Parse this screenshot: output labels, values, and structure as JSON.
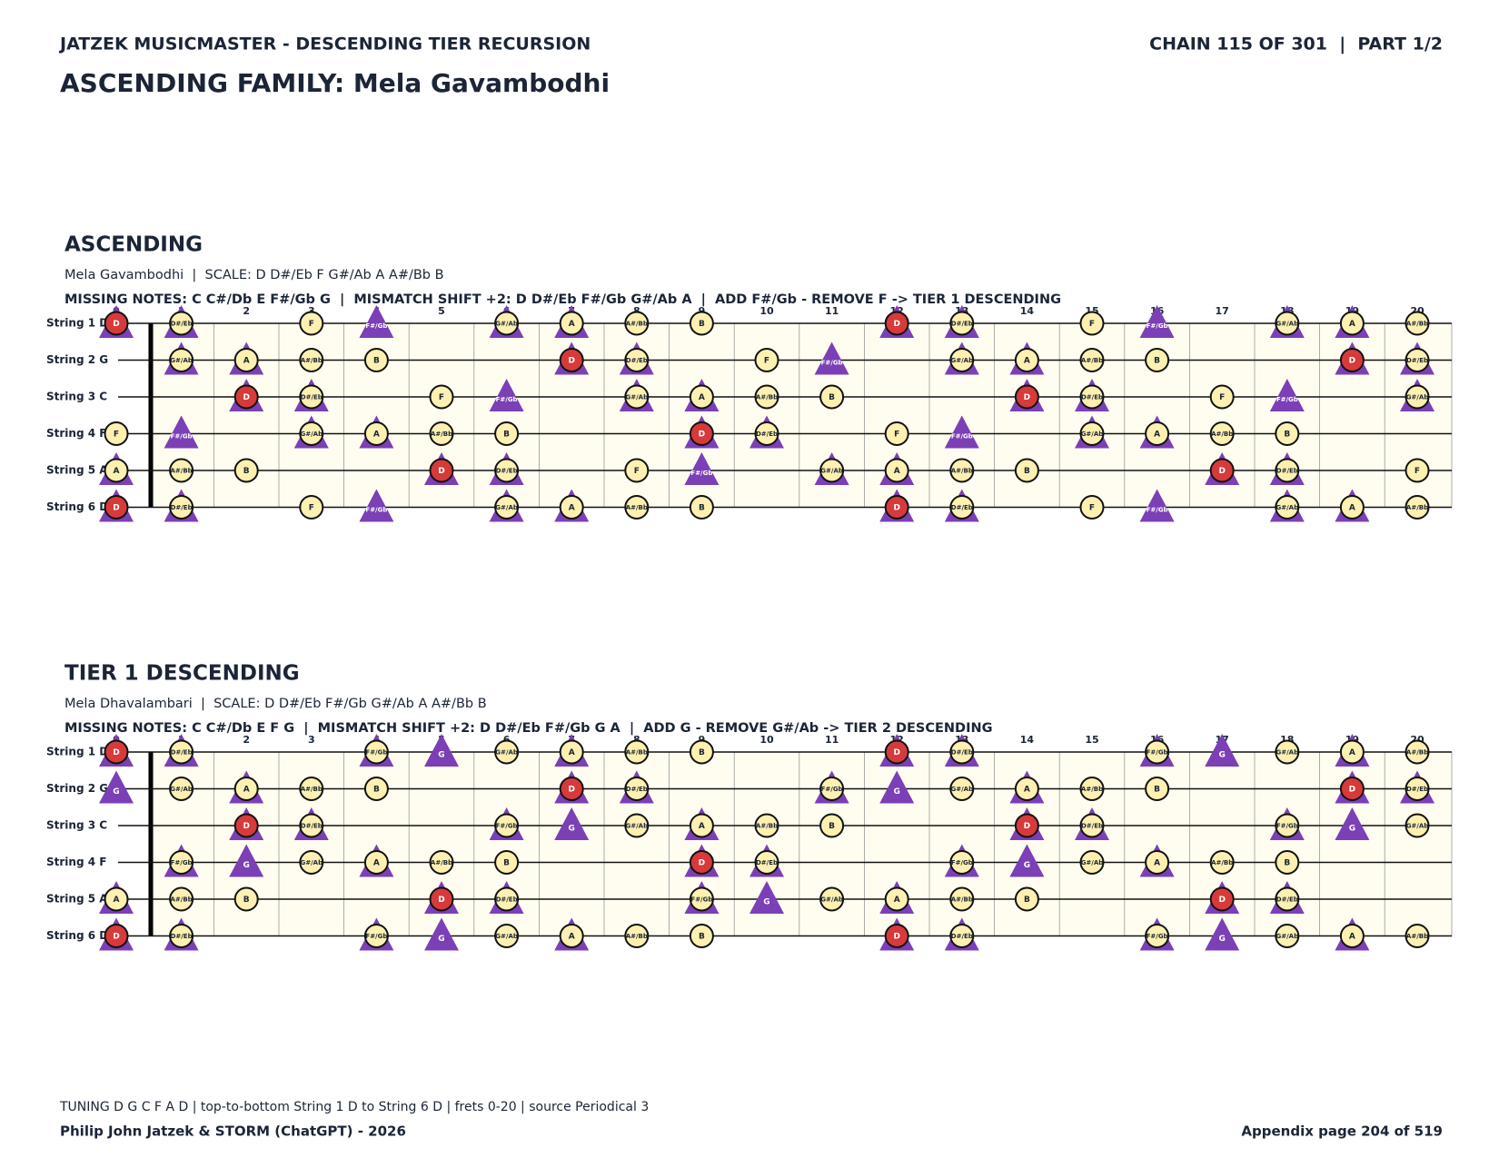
{
  "header": {
    "left": "JATZEK MUSICMASTER - DESCENDING TIER RECURSION",
    "right": "CHAIN 115 OF 301  |  PART 1/2",
    "title": "ASCENDING FAMILY: Mela Gavambodhi"
  },
  "sections": [
    {
      "title": "ASCENDING",
      "subtitle": "Mela Gavambodhi  |  SCALE: D D#/Eb F G#/Ab A A#/Bb B",
      "missing": "MISSING NOTES: C C#/Db E F#/Gb G  |  MISMATCH SHIFT +2: D D#/Eb F#/Gb G#/Ab A  |  ADD F#/Gb - REMOVE F -> TIER 1 DESCENDING",
      "frets": [
        0,
        1,
        2,
        3,
        4,
        5,
        6,
        7,
        8,
        9,
        10,
        11,
        12,
        13,
        14,
        15,
        16,
        17,
        18,
        19,
        20
      ],
      "strings": [
        {
          "label": "String 1 D",
          "cells": [
            [
              "D",
              "root"
            ],
            [
              "D#/Eb",
              "both"
            ],
            null,
            [
              "F",
              "scale"
            ],
            [
              "F#/Gb",
              "shift"
            ],
            null,
            [
              "G#/Ab",
              "both"
            ],
            [
              "A",
              "both"
            ],
            [
              "A#/Bb",
              "scale"
            ],
            [
              "B",
              "scale"
            ],
            null,
            null,
            [
              "D",
              "root"
            ],
            [
              "D#/Eb",
              "both"
            ],
            null,
            [
              "F",
              "scale"
            ],
            [
              "F#/Gb",
              "shift"
            ],
            null,
            [
              "G#/Ab",
              "both"
            ],
            [
              "A",
              "both"
            ],
            [
              "A#/Bb",
              "scale"
            ]
          ]
        },
        {
          "label": "String 2 G",
          "cells": [
            null,
            [
              "G#/Ab",
              "both"
            ],
            [
              "A",
              "both"
            ],
            [
              "A#/Bb",
              "scale"
            ],
            [
              "B",
              "scale"
            ],
            null,
            null,
            [
              "D",
              "root"
            ],
            [
              "D#/Eb",
              "both"
            ],
            null,
            [
              "F",
              "scale"
            ],
            [
              "F#/Gb",
              "shift"
            ],
            null,
            [
              "G#/Ab",
              "both"
            ],
            [
              "A",
              "both"
            ],
            [
              "A#/Bb",
              "scale"
            ],
            [
              "B",
              "scale"
            ],
            null,
            null,
            [
              "D",
              "root"
            ],
            [
              "D#/Eb",
              "both"
            ]
          ]
        },
        {
          "label": "String 3 C",
          "cells": [
            null,
            null,
            [
              "D",
              "root"
            ],
            [
              "D#/Eb",
              "both"
            ],
            null,
            [
              "F",
              "scale"
            ],
            [
              "F#/Gb",
              "shift"
            ],
            null,
            [
              "G#/Ab",
              "both"
            ],
            [
              "A",
              "both"
            ],
            [
              "A#/Bb",
              "scale"
            ],
            [
              "B",
              "scale"
            ],
            null,
            null,
            [
              "D",
              "root"
            ],
            [
              "D#/Eb",
              "both"
            ],
            null,
            [
              "F",
              "scale"
            ],
            [
              "F#/Gb",
              "shift"
            ],
            null,
            [
              "G#/Ab",
              "both"
            ]
          ]
        },
        {
          "label": "String 4 F",
          "cells": [
            [
              "F",
              "scale"
            ],
            [
              "F#/Gb",
              "shift"
            ],
            null,
            [
              "G#/Ab",
              "both"
            ],
            [
              "A",
              "both"
            ],
            [
              "A#/Bb",
              "scale"
            ],
            [
              "B",
              "scale"
            ],
            null,
            null,
            [
              "D",
              "root"
            ],
            [
              "D#/Eb",
              "both"
            ],
            null,
            [
              "F",
              "scale"
            ],
            [
              "F#/Gb",
              "shift"
            ],
            null,
            [
              "G#/Ab",
              "both"
            ],
            [
              "A",
              "both"
            ],
            [
              "A#/Bb",
              "scale"
            ],
            [
              "B",
              "scale"
            ],
            null,
            null
          ]
        },
        {
          "label": "String 5 A",
          "cells": [
            [
              "A",
              "both"
            ],
            [
              "A#/Bb",
              "scale"
            ],
            [
              "B",
              "scale"
            ],
            null,
            null,
            [
              "D",
              "root"
            ],
            [
              "D#/Eb",
              "both"
            ],
            null,
            [
              "F",
              "scale"
            ],
            [
              "F#/Gb",
              "shift"
            ],
            null,
            [
              "G#/Ab",
              "both"
            ],
            [
              "A",
              "both"
            ],
            [
              "A#/Bb",
              "scale"
            ],
            [
              "B",
              "scale"
            ],
            null,
            null,
            [
              "D",
              "root"
            ],
            [
              "D#/Eb",
              "both"
            ],
            null,
            [
              "F",
              "scale"
            ]
          ]
        },
        {
          "label": "String 6 D",
          "cells": [
            [
              "D",
              "root"
            ],
            [
              "D#/Eb",
              "both"
            ],
            null,
            [
              "F",
              "scale"
            ],
            [
              "F#/Gb",
              "shift"
            ],
            null,
            [
              "G#/Ab",
              "both"
            ],
            [
              "A",
              "both"
            ],
            [
              "A#/Bb",
              "scale"
            ],
            [
              "B",
              "scale"
            ],
            null,
            null,
            [
              "D",
              "root"
            ],
            [
              "D#/Eb",
              "both"
            ],
            null,
            [
              "F",
              "scale"
            ],
            [
              "F#/Gb",
              "shift"
            ],
            null,
            [
              "G#/Ab",
              "both"
            ],
            [
              "A",
              "both"
            ],
            [
              "A#/Bb",
              "scale"
            ]
          ]
        }
      ]
    },
    {
      "title": "TIER 1 DESCENDING",
      "subtitle": "Mela Dhavalambari  |  SCALE: D D#/Eb F#/Gb G#/Ab A A#/Bb B",
      "missing": "MISSING NOTES: C C#/Db E F G  |  MISMATCH SHIFT +2: D D#/Eb F#/Gb G A  |  ADD G - REMOVE G#/Ab -> TIER 2 DESCENDING",
      "frets": [
        0,
        1,
        2,
        3,
        4,
        5,
        6,
        7,
        8,
        9,
        10,
        11,
        12,
        13,
        14,
        15,
        16,
        17,
        18,
        19,
        20
      ],
      "strings": [
        {
          "label": "String 1 D",
          "cells": [
            [
              "D",
              "root"
            ],
            [
              "D#/Eb",
              "both"
            ],
            null,
            null,
            [
              "F#/Gb",
              "both"
            ],
            [
              "G",
              "shift"
            ],
            [
              "G#/Ab",
              "scale"
            ],
            [
              "A",
              "both"
            ],
            [
              "A#/Bb",
              "scale"
            ],
            [
              "B",
              "scale"
            ],
            null,
            null,
            [
              "D",
              "root"
            ],
            [
              "D#/Eb",
              "both"
            ],
            null,
            null,
            [
              "F#/Gb",
              "both"
            ],
            [
              "G",
              "shift"
            ],
            [
              "G#/Ab",
              "scale"
            ],
            [
              "A",
              "both"
            ],
            [
              "A#/Bb",
              "scale"
            ]
          ]
        },
        {
          "label": "String 2 G",
          "cells": [
            [
              "G",
              "shift"
            ],
            [
              "G#/Ab",
              "scale"
            ],
            [
              "A",
              "both"
            ],
            [
              "A#/Bb",
              "scale"
            ],
            [
              "B",
              "scale"
            ],
            null,
            null,
            [
              "D",
              "root"
            ],
            [
              "D#/Eb",
              "both"
            ],
            null,
            null,
            [
              "F#/Gb",
              "both"
            ],
            [
              "G",
              "shift"
            ],
            [
              "G#/Ab",
              "scale"
            ],
            [
              "A",
              "both"
            ],
            [
              "A#/Bb",
              "scale"
            ],
            [
              "B",
              "scale"
            ],
            null,
            null,
            [
              "D",
              "root"
            ],
            [
              "D#/Eb",
              "both"
            ]
          ]
        },
        {
          "label": "String 3 C",
          "cells": [
            null,
            null,
            [
              "D",
              "root"
            ],
            [
              "D#/Eb",
              "both"
            ],
            null,
            null,
            [
              "F#/Gb",
              "both"
            ],
            [
              "G",
              "shift"
            ],
            [
              "G#/Ab",
              "scale"
            ],
            [
              "A",
              "both"
            ],
            [
              "A#/Bb",
              "scale"
            ],
            [
              "B",
              "scale"
            ],
            null,
            null,
            [
              "D",
              "root"
            ],
            [
              "D#/Eb",
              "both"
            ],
            null,
            null,
            [
              "F#/Gb",
              "both"
            ],
            [
              "G",
              "shift"
            ],
            [
              "G#/Ab",
              "scale"
            ]
          ]
        },
        {
          "label": "String 4 F",
          "cells": [
            null,
            [
              "F#/Gb",
              "both"
            ],
            [
              "G",
              "shift"
            ],
            [
              "G#/Ab",
              "scale"
            ],
            [
              "A",
              "both"
            ],
            [
              "A#/Bb",
              "scale"
            ],
            [
              "B",
              "scale"
            ],
            null,
            null,
            [
              "D",
              "root"
            ],
            [
              "D#/Eb",
              "both"
            ],
            null,
            null,
            [
              "F#/Gb",
              "both"
            ],
            [
              "G",
              "shift"
            ],
            [
              "G#/Ab",
              "scale"
            ],
            [
              "A",
              "both"
            ],
            [
              "A#/Bb",
              "scale"
            ],
            [
              "B",
              "scale"
            ],
            null,
            null
          ]
        },
        {
          "label": "String 5 A",
          "cells": [
            [
              "A",
              "both"
            ],
            [
              "A#/Bb",
              "scale"
            ],
            [
              "B",
              "scale"
            ],
            null,
            null,
            [
              "D",
              "root"
            ],
            [
              "D#/Eb",
              "both"
            ],
            null,
            null,
            [
              "F#/Gb",
              "both"
            ],
            [
              "G",
              "shift"
            ],
            [
              "G#/Ab",
              "scale"
            ],
            [
              "A",
              "both"
            ],
            [
              "A#/Bb",
              "scale"
            ],
            [
              "B",
              "scale"
            ],
            null,
            null,
            [
              "D",
              "root"
            ],
            [
              "D#/Eb",
              "both"
            ],
            null,
            null
          ]
        },
        {
          "label": "String 6 D",
          "cells": [
            [
              "D",
              "root"
            ],
            [
              "D#/Eb",
              "both"
            ],
            null,
            null,
            [
              "F#/Gb",
              "both"
            ],
            [
              "G",
              "shift"
            ],
            [
              "G#/Ab",
              "scale"
            ],
            [
              "A",
              "both"
            ],
            [
              "A#/Bb",
              "scale"
            ],
            [
              "B",
              "scale"
            ],
            null,
            null,
            [
              "D",
              "root"
            ],
            [
              "D#/Eb",
              "both"
            ],
            null,
            null,
            [
              "F#/Gb",
              "both"
            ],
            [
              "G",
              "shift"
            ],
            [
              "G#/Ab",
              "scale"
            ],
            [
              "A",
              "both"
            ],
            [
              "A#/Bb",
              "scale"
            ]
          ]
        }
      ]
    }
  ],
  "footer": {
    "note": "TUNING D G C F A D | top-to-bottom String 1 D to String 6 D | frets 0-20 | source Periodical 3",
    "credit": "Philip John Jatzek & STORM (ChatGPT) - 2026",
    "page": "Appendix page 204 of 519"
  }
}
